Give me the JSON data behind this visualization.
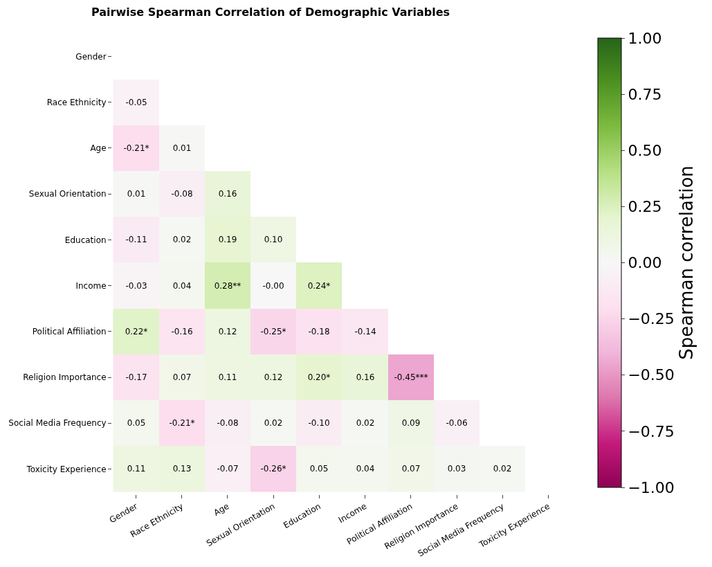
{
  "chart_data": {
    "type": "heatmap",
    "title": "Pairwise Spearman Correlation of Demographic Variables",
    "clabel": "Spearman correlation",
    "categories": [
      "Gender",
      "Race Ethnicity",
      "Age",
      "Sexual Orientation",
      "Education",
      "Income",
      "Political Affiliation",
      "Religion Importance",
      "Social Media Frequency",
      "Toxicity Experience"
    ],
    "y_categories": [
      "Gender",
      "Race Ethnicity",
      "Age",
      "Sexual Orientation",
      "Education",
      "Income",
      "Political Affiliation",
      "Religion Importance",
      "Social Media Frequency",
      "Toxicity Experience"
    ],
    "cells": [
      [
        null,
        null,
        null,
        null,
        null,
        null,
        null,
        null,
        null,
        null
      ],
      [
        -0.05,
        null,
        null,
        null,
        null,
        null,
        null,
        null,
        null,
        null
      ],
      [
        -0.21,
        0.01,
        null,
        null,
        null,
        null,
        null,
        null,
        null,
        null
      ],
      [
        0.01,
        -0.08,
        0.16,
        null,
        null,
        null,
        null,
        null,
        null,
        null
      ],
      [
        -0.11,
        0.02,
        0.19,
        0.1,
        null,
        null,
        null,
        null,
        null,
        null
      ],
      [
        -0.03,
        0.04,
        0.28,
        -0.0,
        0.24,
        null,
        null,
        null,
        null,
        null
      ],
      [
        0.22,
        -0.16,
        0.12,
        -0.25,
        -0.18,
        -0.14,
        null,
        null,
        null,
        null
      ],
      [
        -0.17,
        0.07,
        0.11,
        0.12,
        0.2,
        0.16,
        -0.45,
        null,
        null,
        null
      ],
      [
        0.05,
        -0.21,
        -0.08,
        0.02,
        -0.1,
        0.02,
        0.09,
        -0.06,
        null,
        null
      ],
      [
        0.11,
        0.13,
        -0.07,
        -0.26,
        0.05,
        0.04,
        0.07,
        0.03,
        0.02,
        null
      ]
    ],
    "cell_labels": [
      [
        null,
        null,
        null,
        null,
        null,
        null,
        null,
        null,
        null,
        null
      ],
      [
        "-0.05",
        null,
        null,
        null,
        null,
        null,
        null,
        null,
        null,
        null
      ],
      [
        "-0.21*",
        "0.01",
        null,
        null,
        null,
        null,
        null,
        null,
        null,
        null
      ],
      [
        "0.01",
        "-0.08",
        "0.16",
        null,
        null,
        null,
        null,
        null,
        null,
        null
      ],
      [
        "-0.11",
        "0.02",
        "0.19",
        "0.10",
        null,
        null,
        null,
        null,
        null,
        null
      ],
      [
        "-0.03",
        "0.04",
        "0.28**",
        "-0.00",
        "0.24*",
        null,
        null,
        null,
        null,
        null
      ],
      [
        "0.22*",
        "-0.16",
        "0.12",
        "-0.25*",
        "-0.18",
        "-0.14",
        null,
        null,
        null,
        null
      ],
      [
        "-0.17",
        "0.07",
        "0.11",
        "0.12",
        "0.20*",
        "0.16",
        "-0.45***",
        null,
        null,
        null
      ],
      [
        "0.05",
        "-0.21*",
        "-0.08",
        "0.02",
        "-0.10",
        "0.02",
        "0.09",
        "-0.06",
        null,
        null
      ],
      [
        "0.11",
        "0.13",
        "-0.07",
        "-0.26*",
        "0.05",
        "0.04",
        "0.07",
        "0.03",
        "0.02",
        null
      ]
    ],
    "clim": [
      -1,
      1
    ],
    "cticks": [
      {
        "value": -1,
        "label": "−1.00"
      },
      {
        "value": -0.75,
        "label": "−0.75"
      },
      {
        "value": -0.5,
        "label": "−0.50"
      },
      {
        "value": -0.25,
        "label": "−0.25"
      },
      {
        "value": 0,
        "label": "0.00"
      },
      {
        "value": 0.25,
        "label": "0.25"
      },
      {
        "value": 0.5,
        "label": "0.50"
      },
      {
        "value": 0.75,
        "label": "0.75"
      },
      {
        "value": 1,
        "label": "1.00"
      }
    ]
  }
}
